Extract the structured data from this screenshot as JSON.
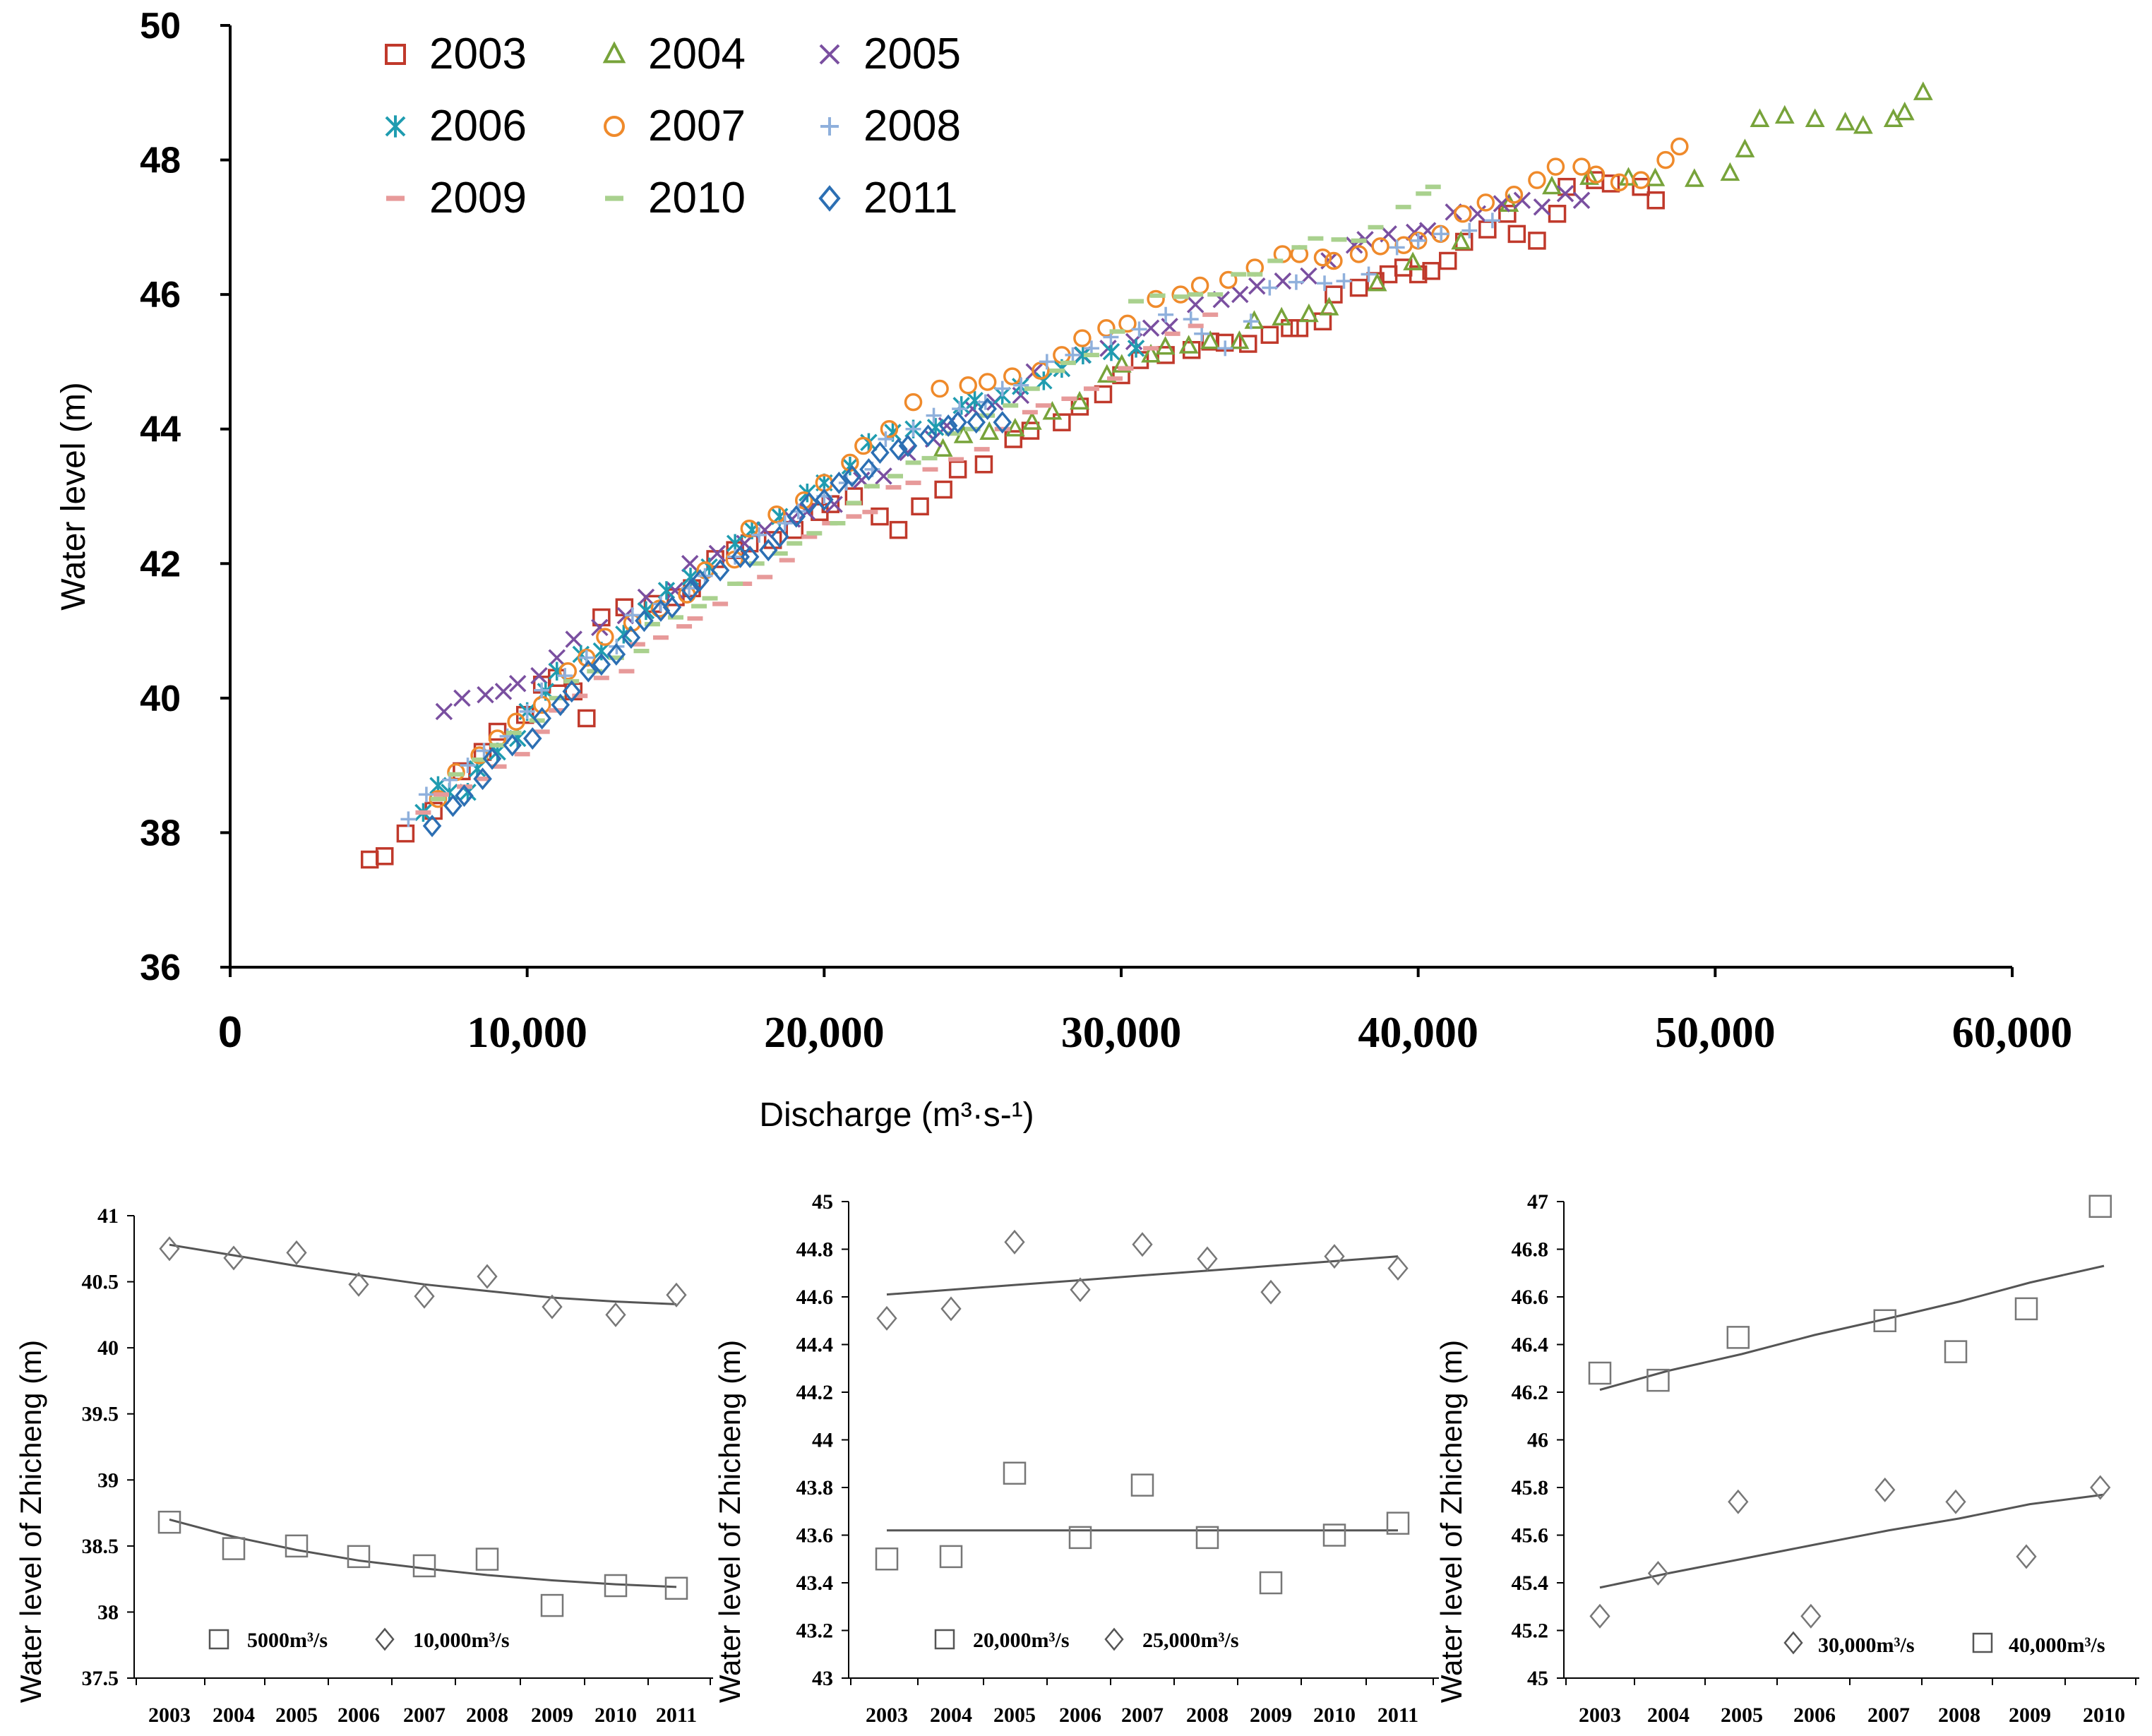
{
  "chart_data": [
    {
      "type": "scatter",
      "title": "",
      "xlabel": "Discharge (m³·s-¹)",
      "ylabel": "Water level (m)",
      "xlim": [
        0,
        60000
      ],
      "ylim": [
        36,
        50
      ],
      "xticks": [
        "0",
        "10,000",
        "20,000",
        "30,000",
        "40,000",
        "50,000",
        "60,000"
      ],
      "xtick_values": [
        0,
        10000,
        20000,
        30000,
        40000,
        50000,
        60000
      ],
      "yticks": [
        "36",
        "38",
        "40",
        "42",
        "44",
        "46",
        "48",
        "50"
      ],
      "ytick_values": [
        36,
        38,
        40,
        42,
        44,
        46,
        48,
        50
      ],
      "legend": [
        {
          "name": "2003",
          "marker": "square",
          "color": "#c0392b"
        },
        {
          "name": "2004",
          "marker": "triangle",
          "color": "#77a33a"
        },
        {
          "name": "2005",
          "marker": "x",
          "color": "#7a4fa0"
        },
        {
          "name": "2006",
          "marker": "asterisk",
          "color": "#1f9cb0"
        },
        {
          "name": "2007",
          "marker": "circle",
          "color": "#ef8a2b"
        },
        {
          "name": "2008",
          "marker": "plus",
          "color": "#8fb0dc"
        },
        {
          "name": "2009",
          "marker": "dash",
          "color": "#e79a9a"
        },
        {
          "name": "2010",
          "marker": "dash",
          "color": "#a9d18e"
        },
        {
          "name": "2011",
          "marker": "diamond",
          "color": "#2c6fb3"
        }
      ],
      "series": [
        {
          "name": "2003",
          "points": [
            [
              4700,
              37.6
            ],
            [
              5200,
              37.65
            ],
            [
              8500,
              39.2
            ],
            [
              9000,
              39.5
            ],
            [
              10500,
              40.2
            ],
            [
              11000,
              40.3
            ],
            [
              12000,
              39.7
            ],
            [
              12500,
              41.2
            ],
            [
              15000,
              41.5
            ],
            [
              17000,
              42.2
            ],
            [
              19000,
              42.5
            ],
            [
              21000,
              43.0
            ],
            [
              22500,
              42.5
            ],
            [
              24500,
              43.4
            ],
            [
              28000,
              44.1
            ],
            [
              30000,
              44.8
            ],
            [
              33000,
              45.3
            ],
            [
              35000,
              45.4
            ],
            [
              36000,
              45.5
            ],
            [
              38000,
              46.1
            ],
            [
              39000,
              46.3
            ],
            [
              40000,
              46.3
            ],
            [
              41000,
              46.5
            ],
            [
              43000,
              47.2
            ],
            [
              44000,
              46.8
            ],
            [
              45000,
              47.6
            ],
            [
              47500,
              47.6
            ],
            [
              48000,
              47.4
            ]
          ]
        },
        {
          "name": "2004",
          "points": [
            [
              24000,
              43.7
            ],
            [
              27000,
              44.1
            ],
            [
              31000,
              45.1
            ],
            [
              33000,
              45.3
            ],
            [
              37000,
              45.8
            ],
            [
              44500,
              47.6
            ],
            [
              50500,
              47.8
            ],
            [
              51500,
              48.6
            ],
            [
              56000,
              48.6
            ],
            [
              57000,
              49.0
            ]
          ]
        },
        {
          "name": "2005",
          "points": [
            [
              7200,
              39.8
            ],
            [
              9200,
              40.1
            ],
            [
              11000,
              40.6
            ],
            [
              14000,
              41.5
            ],
            [
              18000,
              42.5
            ],
            [
              22000,
              43.3
            ],
            [
              25000,
              44.3
            ],
            [
              28000,
              44.9
            ],
            [
              31000,
              45.5
            ],
            [
              34000,
              46.0
            ],
            [
              37000,
              46.5
            ],
            [
              39000,
              46.9
            ],
            [
              42000,
              47.2
            ],
            [
              43500,
              47.4
            ],
            [
              45500,
              47.4
            ]
          ]
        },
        {
          "name": "2006",
          "points": [
            [
              6500,
              38.3
            ],
            [
              7000,
              38.7
            ],
            [
              8000,
              38.6
            ],
            [
              9000,
              39.2
            ],
            [
              10000,
              39.8
            ],
            [
              11000,
              40.4
            ],
            [
              12500,
              40.7
            ],
            [
              14000,
              41.3
            ],
            [
              15500,
              41.8
            ],
            [
              17000,
              42.3
            ],
            [
              18500,
              42.7
            ],
            [
              20000,
              43.2
            ],
            [
              21500,
              43.8
            ],
            [
              23000,
              44.0
            ],
            [
              26000,
              44.5
            ],
            [
              28000,
              44.9
            ],
            [
              30500,
              45.2
            ]
          ]
        },
        {
          "name": "2007",
          "points": [
            [
              7000,
              38.5
            ],
            [
              9000,
              39.4
            ],
            [
              12000,
              40.6
            ],
            [
              16000,
              41.9
            ],
            [
              20000,
              43.2
            ],
            [
              23000,
              44.4
            ],
            [
              25500,
              44.7
            ],
            [
              28000,
              45.1
            ],
            [
              29500,
              45.5
            ],
            [
              32000,
              46.0
            ],
            [
              34500,
              46.4
            ],
            [
              36000,
              46.6
            ],
            [
              38000,
              46.6
            ],
            [
              40000,
              46.8
            ],
            [
              41500,
              47.2
            ],
            [
              44000,
              47.7
            ],
            [
              45500,
              47.9
            ],
            [
              47500,
              47.7
            ],
            [
              48800,
              48.2
            ]
          ]
        },
        {
          "name": "2008",
          "points": [
            [
              6000,
              38.2
            ],
            [
              8000,
              39.0
            ],
            [
              10000,
              39.8
            ],
            [
              12000,
              40.6
            ],
            [
              14500,
              41.4
            ],
            [
              17000,
              42.1
            ],
            [
              20000,
              43.0
            ],
            [
              23000,
              44.0
            ],
            [
              26000,
              44.6
            ],
            [
              29000,
              45.2
            ],
            [
              31500,
              45.7
            ],
            [
              33500,
              45.2
            ],
            [
              35000,
              46.1
            ],
            [
              37500,
              46.2
            ],
            [
              40000,
              46.8
            ],
            [
              42500,
              47.1
            ]
          ]
        },
        {
          "name": "2009",
          "points": [
            [
              6500,
              38.3
            ],
            [
              8500,
              38.8
            ],
            [
              10500,
              39.5
            ],
            [
              12500,
              40.3
            ],
            [
              14500,
              40.9
            ],
            [
              16500,
              41.4
            ],
            [
              18000,
              41.8
            ],
            [
              19500,
              42.4
            ],
            [
              21000,
              42.7
            ],
            [
              23000,
              43.2
            ],
            [
              26000,
              44.0
            ],
            [
              29000,
              44.6
            ],
            [
              31000,
              45.2
            ],
            [
              33000,
              45.7
            ]
          ]
        },
        {
          "name": "2010",
          "points": [
            [
              7000,
              38.5
            ],
            [
              9000,
              39.3
            ],
            [
              11000,
              40.0
            ],
            [
              13000,
              40.6
            ],
            [
              15000,
              41.2
            ],
            [
              17000,
              41.7
            ],
            [
              19000,
              42.3
            ],
            [
              21000,
              42.9
            ],
            [
              23000,
              43.5
            ],
            [
              25000,
              44.0
            ],
            [
              27000,
              44.6
            ],
            [
              29000,
              45.1
            ],
            [
              30500,
              45.9
            ],
            [
              32500,
              46.0
            ],
            [
              34500,
              46.3
            ],
            [
              36000,
              46.7
            ],
            [
              38000,
              46.8
            ],
            [
              39500,
              47.3
            ],
            [
              40500,
              47.6
            ]
          ]
        },
        {
          "name": "2011",
          "points": [
            [
              6800,
              38.1
            ],
            [
              7500,
              38.4
            ],
            [
              8500,
              38.8
            ],
            [
              9500,
              39.3
            ],
            [
              10500,
              39.7
            ],
            [
              11500,
              40.1
            ],
            [
              12500,
              40.5
            ],
            [
              13500,
              40.9
            ],
            [
              14500,
              41.3
            ],
            [
              15500,
              41.6
            ],
            [
              16500,
              41.9
            ],
            [
              17500,
              42.1
            ],
            [
              18500,
              42.4
            ],
            [
              19500,
              42.9
            ],
            [
              20500,
              43.2
            ],
            [
              21500,
              43.4
            ],
            [
              22500,
              43.7
            ],
            [
              23500,
              43.9
            ],
            [
              24500,
              44.1
            ],
            [
              25500,
              44.3
            ],
            [
              26000,
              44.1
            ]
          ]
        }
      ]
    },
    {
      "type": "scatter",
      "xlabel": "",
      "ylabel": "Water level of Zhicheng (m)",
      "categories": [
        "2003",
        "2004",
        "2005",
        "2006",
        "2007",
        "2008",
        "2009",
        "2010",
        "2011"
      ],
      "yticks": [
        "37.5",
        "38",
        "38.5",
        "39",
        "39.5",
        "40",
        "40.5",
        "41"
      ],
      "ylim": [
        37.5,
        41
      ],
      "series": [
        {
          "name": "5000m³/s",
          "marker": "square",
          "values": [
            38.68,
            38.48,
            38.5,
            38.42,
            38.35,
            38.4,
            38.05,
            38.2,
            38.18
          ],
          "trend": [
            38.7,
            38.57,
            38.47,
            38.39,
            38.33,
            38.28,
            38.24,
            38.21,
            38.19
          ]
        },
        {
          "name": "10,000m³/s",
          "marker": "diamond",
          "values": [
            40.75,
            40.68,
            40.72,
            40.48,
            40.39,
            40.54,
            40.31,
            40.25,
            40.4
          ],
          "trend": [
            40.78,
            40.7,
            40.62,
            40.55,
            40.48,
            40.43,
            40.38,
            40.35,
            40.33
          ]
        }
      ]
    },
    {
      "type": "scatter",
      "xlabel": "",
      "ylabel": "Water level of Zhicheng (m)",
      "categories": [
        "2003",
        "2004",
        "2005",
        "2006",
        "2007",
        "2008",
        "2009",
        "2010",
        "2011"
      ],
      "yticks": [
        "43",
        "43.2",
        "43.4",
        "43.6",
        "43.8",
        "44",
        "44.2",
        "44.4",
        "44.6",
        "44.8",
        "45"
      ],
      "ylim": [
        43,
        45
      ],
      "series": [
        {
          "name": "20,000m³/s",
          "marker": "square",
          "values": [
            43.5,
            43.51,
            43.86,
            43.59,
            43.81,
            43.59,
            43.4,
            43.6,
            43.65
          ],
          "trend": [
            43.62,
            43.62,
            43.62,
            43.62,
            43.62,
            43.62,
            43.62,
            43.62,
            43.62
          ]
        },
        {
          "name": "25,000m³/s",
          "marker": "diamond",
          "values": [
            44.51,
            44.55,
            44.83,
            44.63,
            44.82,
            44.76,
            44.62,
            44.77,
            44.72
          ],
          "trend": [
            44.61,
            44.63,
            44.65,
            44.67,
            44.69,
            44.71,
            44.73,
            44.75,
            44.77
          ]
        }
      ]
    },
    {
      "type": "scatter",
      "xlabel": "",
      "ylabel": "Water level of Zhicheng (m)",
      "categories": [
        "2003",
        "2004",
        "2005",
        "2006",
        "2007",
        "2008",
        "2009",
        "2010"
      ],
      "yticks": [
        "45",
        "45.2",
        "45.4",
        "45.6",
        "45.8",
        "46",
        "46.2",
        "46.4",
        "46.6",
        "46.8",
        "47"
      ],
      "ylim": [
        45,
        47
      ],
      "series": [
        {
          "name": "30,000m³/s",
          "marker": "diamond",
          "points": [
            [
              2003.0,
              45.26
            ],
            [
              2003.85,
              45.44
            ],
            [
              2004.95,
              45.74
            ],
            [
              2005.95,
              45.26
            ],
            [
              2006.95,
              45.79
            ],
            [
              2007.95,
              45.74
            ],
            [
              2008.95,
              45.51
            ],
            [
              2009.95,
              45.8
            ]
          ],
          "trend": [
            45.38,
            45.44,
            45.5,
            45.56,
            45.62,
            45.67,
            45.73,
            45.77
          ]
        },
        {
          "name": "40,000m³/s",
          "marker": "square",
          "points": [
            [
              2003.0,
              46.28
            ],
            [
              2003.85,
              46.25
            ],
            [
              2004.95,
              46.43
            ],
            [
              2006.95,
              46.5
            ],
            [
              2007.95,
              46.37
            ],
            [
              2008.95,
              46.55
            ],
            [
              2009.95,
              46.98
            ]
          ],
          "trend": [
            46.21,
            46.29,
            46.36,
            46.44,
            46.51,
            46.58,
            46.66,
            46.73
          ]
        }
      ]
    }
  ]
}
